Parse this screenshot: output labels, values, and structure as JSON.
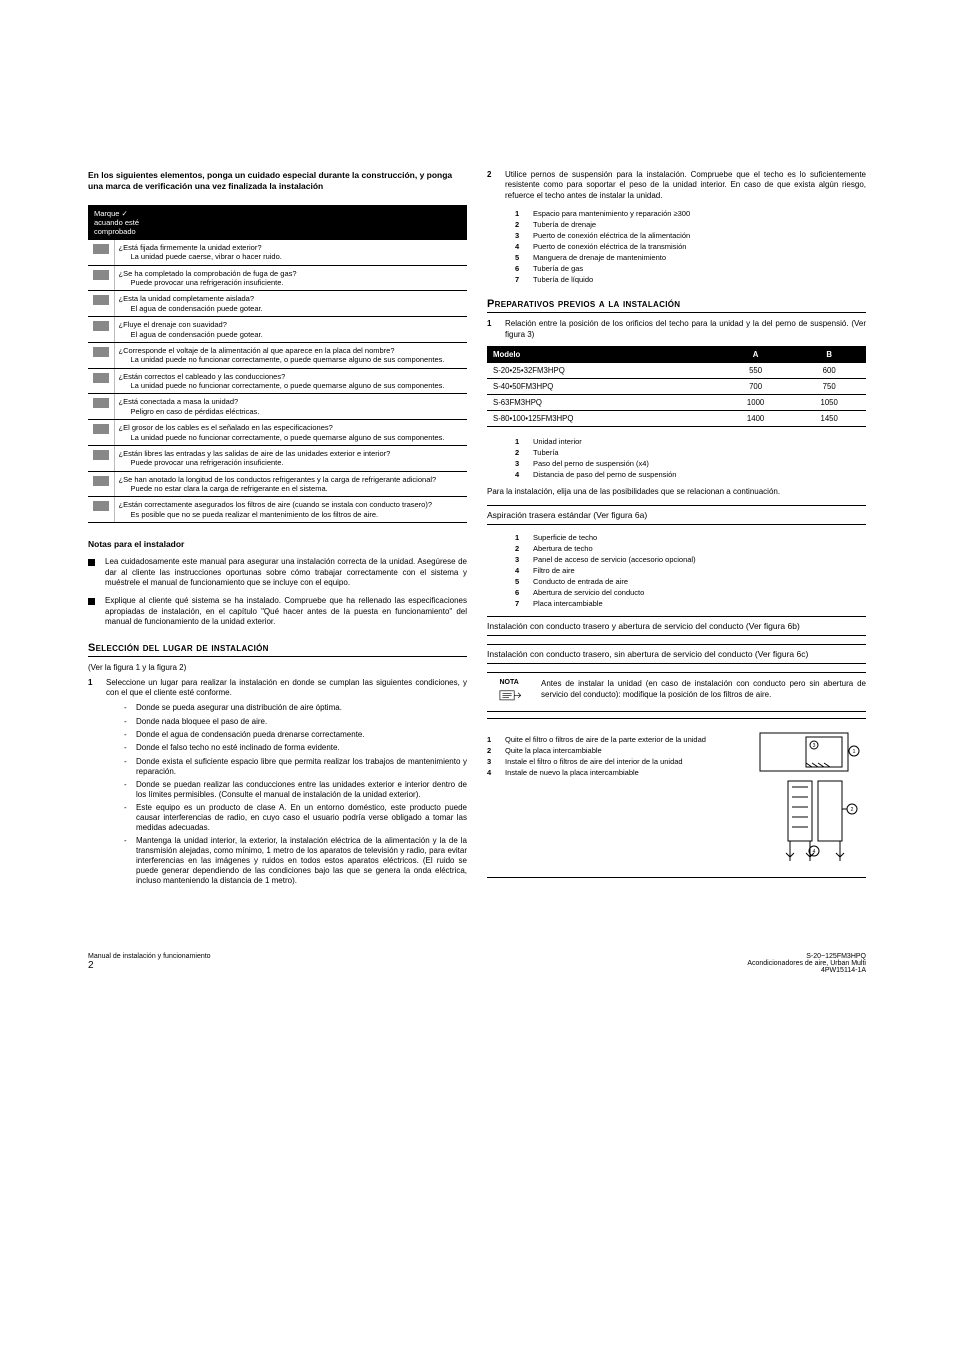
{
  "left": {
    "intro": "En los siguientes elementos, ponga un cuidado especial durante la construcción, y ponga una marca de verificación una vez finalizada la instalación",
    "check_header": "Marque ✓\nacuando esté\ncomprobado",
    "checks": [
      "¿Está fijada firmemente la unidad exterior?\nLa unidad puede caerse, vibrar o hacer ruido.",
      "¿Se ha completado la comprobación de fuga de gas?\nPuede provocar una refrigeración insuficiente.",
      "¿Esta la unidad completamente aislada?\nEl agua de condensación puede gotear.",
      "¿Fluye el drenaje con suavidad?\nEl agua de condensación puede gotear.",
      "¿Corresponde el voltaje de la alimentación al que aparece en la placa del nombre?\nLa unidad puede no funcionar correctamente, o puede quemarse alguno de sus componentes.",
      "¿Están correctos el cableado y las conducciones?\nLa unidad puede no funcionar correctamente, o puede quemarse alguno de sus componentes.",
      "¿Está conectada a masa la unidad?\nPeligro en caso de pérdidas eléctricas.",
      "¿El grosor de los cables es el señalado en las especificaciones?\nLa unidad puede no funcionar correctamente, o puede quemarse alguno de sus componentes.",
      "¿Están libres las entradas y las salidas de aire de las unidades exterior e interior?\nPuede provocar una refrigeración insuficiente.",
      "¿Se han anotado la longitud de los conductos refrigerantes y la carga de refrigerante adicional?\nPuede no estar clara la carga de refrigerante en el sistema.",
      "¿Están correctamente asegurados los filtros de aire (cuando se instala con conducto trasero)?\nEs posible que no se pueda realizar el mantenimiento de los filtros de aire."
    ],
    "notes_h": "Notas para el instalador",
    "notes": [
      "Lea cuidadosamente este manual para asegurar una instalación correcta de la unidad. Asegúrese de dar al cliente las instrucciones oportunas sobre cómo trabajar correctamente con el sistema y muéstrele el manual de funcionamiento que se incluye con el equipo.",
      "Explique al cliente qué sistema se ha instalado. Compruebe que ha rellenado las especificaciones apropiadas de instalación, en el capítulo \"Qué hacer antes de la puesta en funcionamiento\" del manual de funcionamiento de la unidad exterior."
    ],
    "sel_h": "Selección del lugar de instalación",
    "sel_ref": "(Ver la figura 1 y la figura 2)",
    "sel_1": "Seleccione un lugar para realizar la instalación en donde se cumplan las siguientes condiciones, y con el que el cliente esté conforme.",
    "sel_dash": [
      "Donde se pueda asegurar una distribución de aire óptima.",
      "Donde nada bloquee el paso de aire.",
      "Donde el agua de condensación pueda drenarse correctamente.",
      "Donde el falso techo no esté inclinado de forma evidente.",
      "Donde exista el suficiente espacio libre que permita realizar los trabajos de mantenimiento y reparación.",
      "Donde se puedan realizar las conducciones entre las unidades exterior e interior dentro de los límites permisibles. (Consulte el manual de instalación de la unidad exterior).",
      "Este equipo es un producto de clase A. En un entorno doméstico, este producto puede causar interferencias de radio, en cuyo caso el usuario podría verse obligado a tomar las medidas adecuadas.",
      "Mantenga la unidad interior, la exterior, la instalación eléctrica de la alimentación y la de la transmisión alejadas, como mínimo, 1 metro de los aparatos de televisión y radio, para evitar interferencias en las imágenes y ruidos en todos estos aparatos eléctricos. (El ruido se puede generar dependiendo de las condiciones bajo las que se genera la onda eléctrica, incluso manteniendo la distancia de 1 metro)."
    ]
  },
  "right": {
    "step2": "Utilice pernos de suspensión para la instalación. Compruebe que el techo es lo suficientemente resistente como para soportar el peso de la unidad interior. En caso de que exista algún riesgo, refuerce el techo antes de instalar la unidad.",
    "step2_leg": [
      "Espacio para mantenimiento y reparación ≥300",
      "Tubería de drenaje",
      "Puerto de conexión eléctrica de la alimentación",
      "Puerto de conexión eléctrica de la transmisión",
      "Manguera de drenaje de mantenimiento",
      "Tubería de gas",
      "Tubería de líquido"
    ],
    "prep_h": "Preparativos previos a la instalación",
    "prep_1": "Relación entre la posición de los orificios del techo para la unidad y la del perno de suspensió. (Ver figura 3)",
    "mtable_h": [
      "Modelo",
      "A",
      "B"
    ],
    "mtable_rows": [
      [
        "S-20•25•32FM3HPQ",
        "550",
        "600"
      ],
      [
        "S-40•50FM3HPQ",
        "700",
        "750"
      ],
      [
        "S-63FM3HPQ",
        "1000",
        "1050"
      ],
      [
        "S-80•100•125FM3HPQ",
        "1400",
        "1450"
      ]
    ],
    "prep_leg": [
      "Unidad interior",
      "Tubería",
      "Paso del perno de suspensión (x4)",
      "Distancia de paso del perno de suspensión"
    ],
    "prep_p": "Para la instalación, elija una de las posibilidades que se relacionan a continuación.",
    "asp_h": "Aspiración trasera estándar (Ver figura 6a)",
    "asp_leg": [
      "Superficie de techo",
      "Abertura de techo",
      "Panel de acceso de servicio (accesorio opcional)",
      "Filtro de aire",
      "Conducto de entrada de aire",
      "Abertura de servicio del conducto",
      "Placa intercambiable"
    ],
    "inst_h1": "Instalación con conducto trasero y abertura de servicio del conducto (Ver figura 6b)",
    "inst_h2": "Instalación con conducto trasero, sin abertura de servicio del conducto (Ver figura 6c)",
    "note_label": "NOTA",
    "note_txt": "Antes de instalar la unidad (en caso de instalación con conducto pero sin abertura de servicio del conducto): modifique la posición de los filtros de aire.",
    "fig_leg": [
      "Quite el filtro o filtros de aire de la parte exterior de la unidad",
      "Quite la placa intercambiable",
      "Instale el filtro o filtros de aire del interior de la unidad",
      "Instale de nuevo la placa intercambiable"
    ]
  },
  "footer": {
    "left1": "Manual de instalación y funcionamiento",
    "left2": "2",
    "right1": "S-20~125FM3HPQ",
    "right2": "Acondicionadores de aire, Urban Multi",
    "right3": "4PW15114-1A"
  },
  "colors": {
    "text": "#000000",
    "table_header_bg": "#000000",
    "table_header_fg": "#ffffff",
    "checkbox_fill": "#888888",
    "rule": "#000000"
  }
}
